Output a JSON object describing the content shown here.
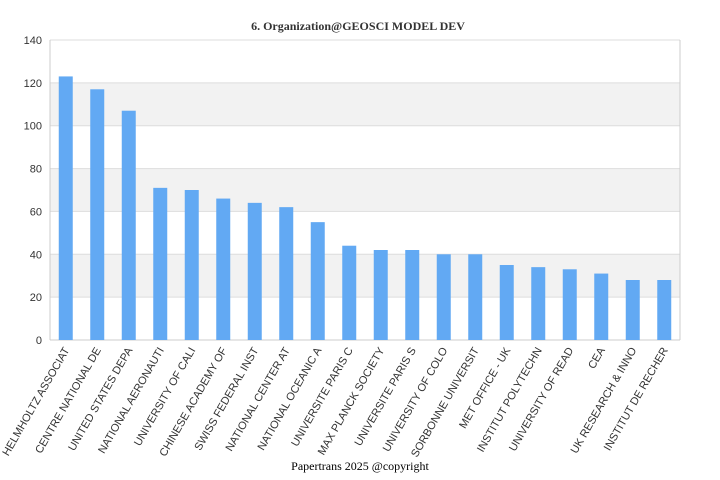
{
  "chart_data": {
    "type": "bar",
    "title": "6. Organization@GEOSCI MODEL DEV",
    "xlabel": "",
    "ylabel": "",
    "ylim": [
      0,
      140
    ],
    "yticks": [
      0,
      20,
      40,
      60,
      80,
      100,
      120,
      140
    ],
    "grid": true,
    "legend": "none",
    "categories": [
      "HELMHOLTZ ASSOCIAT",
      "CENTRE NATIONAL DE",
      "UNITED STATES DEPA",
      "NATIONAL AERONAUTI",
      "UNIVERSITY OF CALI",
      "CHINESE ACADEMY OF",
      "SWISS FEDERAL INST",
      "NATIONAL CENTER AT",
      "NATIONAL OCEANIC A",
      "UNIVERSITE PARIS C",
      "MAX PLANCK SOCIETY",
      "UNIVERSITE PARIS S",
      "UNIVERSITY OF COLO",
      "SORBONNE UNIVERSIT",
      "MET OFFICE - UK",
      "INSTITUT POLYTECHN",
      "UNIVERSITY OF READ",
      "CEA",
      "UK RESEARCH & INNO",
      "INSTITUT DE RECHER"
    ],
    "values": [
      123,
      117,
      107,
      71,
      70,
      66,
      64,
      62,
      55,
      44,
      42,
      42,
      40,
      40,
      35,
      34,
      33,
      31,
      28,
      28
    ],
    "colors": {
      "bar": "#62a9f3",
      "band": "#f2f2f2",
      "grid": "#dddddd",
      "axis": "#cccccc"
    }
  },
  "footer": "Papertrans 2025 @copyright"
}
